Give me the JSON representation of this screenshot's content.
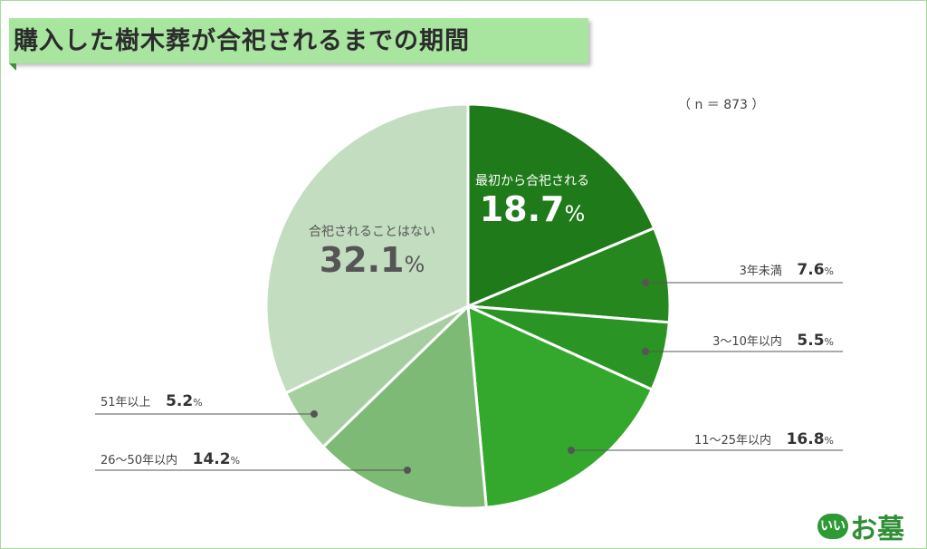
{
  "title": "購入した樹木葬が合祀されるまでの期間",
  "sample": "（ n ＝ 873 ）",
  "chart_data": {
    "type": "pie",
    "title": "購入した樹木葬が合祀されるまでの期間",
    "sample_size": 873,
    "unit": "%",
    "start": "12 o'clock, clockwise",
    "slices": [
      {
        "label": "最初から合祀される",
        "value": 18.7,
        "color": "#1f7a1a"
      },
      {
        "label": "3年未満",
        "value": 7.6,
        "color": "#26871f"
      },
      {
        "label": "3〜10年以内",
        "value": 5.5,
        "color": "#2a9524"
      },
      {
        "label": "11〜25年以内",
        "value": 16.8,
        "color": "#34a82c"
      },
      {
        "label": "26〜50年以内",
        "value": 14.2,
        "color": "#7dba75"
      },
      {
        "label": "51年以上",
        "value": 5.2,
        "color": "#a5cf9e"
      },
      {
        "label": "合祀されることはない",
        "value": 32.1,
        "color": "#c3ddc0"
      }
    ]
  },
  "labels": {
    "in0": {
      "caption": "最初から合祀される",
      "value": "18.7",
      "unit": "%"
    },
    "l1": {
      "caption": "3年未満",
      "value": "7.6",
      "unit": "%"
    },
    "l2": {
      "caption": "3〜10年以内",
      "value": "5.5",
      "unit": "%"
    },
    "l3": {
      "caption": "11〜25年以内",
      "value": "16.8",
      "unit": "%"
    },
    "l4": {
      "caption": "26〜50年以内",
      "value": "14.2",
      "unit": "%"
    },
    "l5": {
      "caption": "51年以上",
      "value": "5.2",
      "unit": "%"
    },
    "in6": {
      "caption": "合祀されることはない",
      "value": "32.1",
      "unit": "%"
    }
  },
  "logo": {
    "badge": "いい",
    "word": "お墓"
  }
}
